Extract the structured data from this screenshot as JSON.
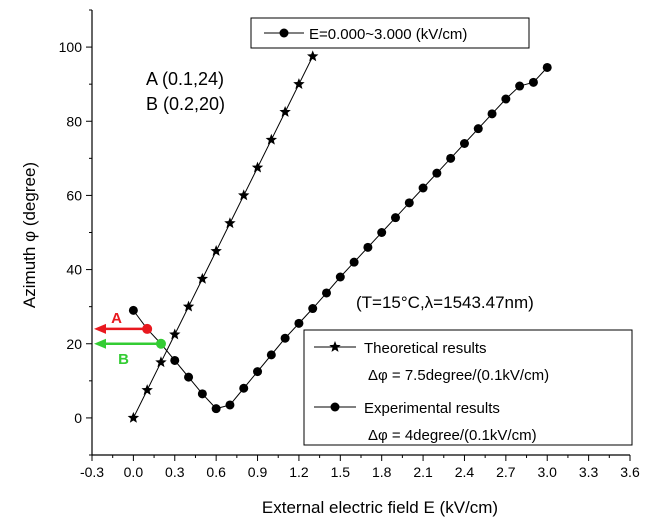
{
  "chart_data": {
    "type": "scatter",
    "xlabel": "External electric field E (kV/cm)",
    "ylabel": "Azimuth φ (degree)",
    "xlim": [
      -0.3,
      3.6
    ],
    "ylim": [
      -10,
      110
    ],
    "x_ticks": [
      -0.3,
      0.0,
      0.3,
      0.6,
      0.9,
      1.2,
      1.5,
      1.8,
      2.1,
      2.4,
      2.7,
      3.0,
      3.3,
      3.6
    ],
    "x_tick_labels": [
      "-0.3",
      "0.0",
      "0.3",
      "0.6",
      "0.9",
      "1.2",
      "1.5",
      "1.8",
      "2.1",
      "2.4",
      "2.7",
      "3.0",
      "3.3",
      "3.6"
    ],
    "y_ticks": [
      0,
      20,
      40,
      60,
      80,
      100
    ],
    "y_tick_labels": [
      "0",
      "20",
      "40",
      "60",
      "80",
      "100"
    ],
    "grid": false,
    "top_label": "E=0.000~3.000 (kV/cm)",
    "condition_text": "(T=15°C,λ=1543.47nm)",
    "annotations": {
      "point_a_text": "A (0.1,24)",
      "point_b_text": "B (0.2,20)",
      "arrow_a_label": "A",
      "arrow_b_label": "B",
      "arrow_a_color": "#e8191f",
      "arrow_b_color": "#33cc33",
      "point_a": {
        "x": 0.1,
        "y": 24
      },
      "point_b": {
        "x": 0.2,
        "y": 20
      }
    },
    "legend": {
      "position": "bottom-right",
      "entries": [
        {
          "label": "Theoretical results",
          "note": "Δφ = 7.5degree/(0.1kV/cm)",
          "marker": "star"
        },
        {
          "label": "Experimental results",
          "note": "Δφ = 4degree/(0.1kV/cm)",
          "marker": "circle"
        }
      ]
    },
    "series": [
      {
        "marker": "star",
        "x": [
          0.0,
          0.1,
          0.2,
          0.3,
          0.4,
          0.5,
          0.6,
          0.7,
          0.8,
          0.9,
          1.0,
          1.1,
          1.2,
          1.3
        ],
        "y": [
          0.0,
          7.5,
          15.0,
          22.5,
          30.0,
          37.5,
          45.0,
          52.5,
          60.0,
          67.5,
          75.0,
          82.5,
          90.0,
          97.5
        ]
      },
      {
        "marker": "circle",
        "x": [
          0.0,
          0.1,
          0.2,
          0.3,
          0.4,
          0.5,
          0.6,
          0.7,
          0.8,
          0.9,
          1.0,
          1.1,
          1.2,
          1.3,
          1.4,
          1.5,
          1.6,
          1.7,
          1.8,
          1.9,
          2.0,
          2.1,
          2.2,
          2.3,
          2.4,
          2.5,
          2.6,
          2.7,
          2.8,
          2.9,
          3.0
        ],
        "y": [
          29.0,
          24.0,
          20.0,
          15.5,
          11.0,
          6.5,
          2.5,
          3.5,
          8.0,
          12.5,
          17.0,
          21.5,
          25.5,
          29.5,
          33.7,
          38.0,
          42.0,
          46.0,
          50.0,
          54.0,
          58.0,
          62.0,
          66.0,
          70.0,
          74.0,
          78.0,
          82.0,
          86.0,
          89.5,
          90.5,
          94.5
        ]
      }
    ]
  }
}
